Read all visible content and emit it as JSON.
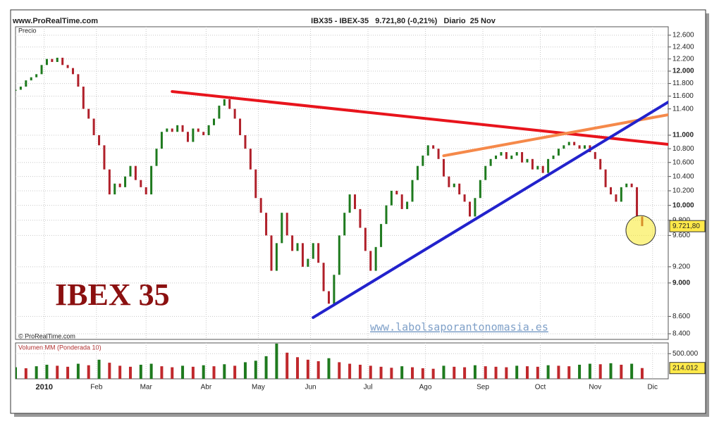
{
  "chart_data": [
    {
      "type": "line",
      "source": "www.ProRealTime.com",
      "title": "IBX35 - IBEX-35   9.721,80 (-0,21%)   Diario  25 Nov",
      "y_label": "Precio",
      "credit": "© ProRealTime.com",
      "annotation": "IBEX 35",
      "watermark": "www.labolsaporantonomasia.es",
      "log_scale": true,
      "grid": true,
      "colors": {
        "up": "#1e7a1e",
        "down": "#b0202a"
      },
      "xlim": [
        0,
        250
      ],
      "ylim": [
        8336,
        12745
      ],
      "yticks": [
        {
          "value": 12600,
          "label": "12.600"
        },
        {
          "value": 12400,
          "label": "12.400"
        },
        {
          "value": 12200,
          "label": "12.200"
        },
        {
          "value": 12000,
          "label": "12.000"
        },
        {
          "value": 11800,
          "label": "11.800"
        },
        {
          "value": 11600,
          "label": "11.600"
        },
        {
          "value": 11400,
          "label": "11.400"
        },
        {
          "value": 11000,
          "label": "11.000"
        },
        {
          "value": 10800,
          "label": "10.800"
        },
        {
          "value": 10600,
          "label": "10.600"
        },
        {
          "value": 10400,
          "label": "10.400"
        },
        {
          "value": 10200,
          "label": "10.200"
        },
        {
          "value": 10000,
          "label": "10.000"
        },
        {
          "value": 9800,
          "label": "9.800"
        },
        {
          "value": 9600,
          "label": "9.600"
        },
        {
          "value": 9200,
          "label": "9.200"
        },
        {
          "value": 9000,
          "label": "9.000"
        },
        {
          "value": 8600,
          "label": "8.600"
        },
        {
          "value": 8400,
          "label": "8.400"
        }
      ],
      "x": [
        0,
        2,
        4,
        6,
        8,
        10,
        12,
        14,
        16,
        18,
        20,
        22,
        24,
        26,
        28,
        30,
        32,
        34,
        36,
        38,
        40,
        42,
        44,
        46,
        48,
        50,
        52,
        54,
        56,
        58,
        60,
        62,
        64,
        66,
        68,
        70,
        72,
        74,
        76,
        78,
        80,
        82,
        84,
        86,
        88,
        90,
        92,
        94,
        96,
        98,
        100,
        102,
        104,
        106,
        108,
        110,
        112,
        114,
        116,
        118,
        120,
        122,
        124,
        126,
        128,
        130,
        132,
        134,
        136,
        138,
        140,
        142,
        144,
        146,
        148,
        150,
        152,
        154,
        156,
        158,
        160,
        162,
        164,
        166,
        168,
        170,
        172,
        174,
        176,
        178,
        180,
        182,
        184,
        186,
        188,
        190,
        192,
        194,
        196,
        198,
        200,
        202,
        204,
        206,
        208,
        210,
        212,
        214,
        216,
        218,
        220,
        222,
        224,
        226,
        228,
        230,
        232,
        234,
        236,
        238,
        240
      ],
      "values": [
        11700,
        11750,
        11850,
        11900,
        11950,
        12100,
        12200,
        12150,
        12220,
        12100,
        12050,
        11950,
        11750,
        11400,
        11250,
        11000,
        10850,
        10500,
        10150,
        10300,
        10250,
        10400,
        10550,
        10350,
        10250,
        10150,
        10550,
        10800,
        11050,
        11100,
        11050,
        11150,
        11050,
        10900,
        11100,
        11050,
        11000,
        11150,
        11250,
        11450,
        11550,
        11400,
        11250,
        11000,
        10800,
        10500,
        10100,
        9900,
        9600,
        9150,
        9500,
        9900,
        9600,
        9400,
        9500,
        9200,
        9300,
        9500,
        9250,
        8900,
        8750,
        9100,
        9600,
        9900,
        10150,
        9950,
        9700,
        9400,
        9150,
        9450,
        9750,
        10000,
        10200,
        10150,
        9950,
        10050,
        10350,
        10550,
        10700,
        10850,
        10800,
        10650,
        10400,
        10250,
        10300,
        10150,
        10050,
        9850,
        10100,
        10350,
        10550,
        10650,
        10700,
        10750,
        10650,
        10700,
        10750,
        10600,
        10650,
        10500,
        10550,
        10450,
        10650,
        10700,
        10800,
        10850,
        10900,
        10850,
        10800,
        10850,
        10750,
        10650,
        10500,
        10250,
        10150,
        10050,
        10250,
        10300,
        10250,
        9850,
        9721.8
      ],
      "last_value": {
        "value": 9721.8,
        "label": "9.721,80"
      },
      "trend_lines": [
        {
          "color": "#e8141c",
          "x": [
            60,
            250
          ],
          "y": [
            11672,
            10864
          ]
        },
        {
          "color": "#f5894a",
          "x": [
            164,
            250
          ],
          "y": [
            10697,
            11310
          ]
        },
        {
          "color": "#2222cc",
          "x": [
            114,
            250
          ],
          "y": [
            8587,
            11506
          ]
        }
      ]
    },
    {
      "type": "bar",
      "title": "Volumen MM (Ponderada 10)",
      "colors": {
        "up": "#1e7a1e",
        "down": "#c0282c"
      },
      "grid": true,
      "xlim": [
        0,
        250
      ],
      "ylim": [
        0,
        714000
      ],
      "yticks": [
        {
          "value": 500000,
          "label": "500.000"
        }
      ],
      "xticks": [
        {
          "value": 11,
          "label": "2010"
        },
        {
          "value": 31,
          "label": "Feb"
        },
        {
          "value": 50,
          "label": "Mar"
        },
        {
          "value": 73,
          "label": "Abr"
        },
        {
          "value": 93,
          "label": "May"
        },
        {
          "value": 113,
          "label": "Jun"
        },
        {
          "value": 135,
          "label": "Jul"
        },
        {
          "value": 157,
          "label": "Ago"
        },
        {
          "value": 179,
          "label": "Sep"
        },
        {
          "value": 201,
          "label": "Oct"
        },
        {
          "value": 222,
          "label": "Nov"
        },
        {
          "value": 244,
          "label": "Dic"
        }
      ],
      "x": [
        0,
        4,
        8,
        12,
        16,
        20,
        24,
        28,
        32,
        36,
        40,
        44,
        48,
        52,
        56,
        60,
        64,
        68,
        72,
        76,
        80,
        84,
        88,
        92,
        96,
        100,
        104,
        108,
        112,
        116,
        120,
        124,
        128,
        132,
        136,
        140,
        144,
        148,
        152,
        156,
        160,
        164,
        168,
        172,
        176,
        180,
        184,
        188,
        192,
        196,
        200,
        204,
        208,
        212,
        216,
        220,
        224,
        228,
        232,
        236,
        240
      ],
      "values": [
        230000,
        210000,
        250000,
        280000,
        260000,
        240000,
        300000,
        270000,
        380000,
        320000,
        260000,
        240000,
        280000,
        300000,
        250000,
        230000,
        260000,
        240000,
        270000,
        250000,
        290000,
        260000,
        330000,
        360000,
        450000,
        700000,
        520000,
        430000,
        380000,
        350000,
        410000,
        330000,
        300000,
        280000,
        260000,
        240000,
        220000,
        250000,
        230000,
        210000,
        200000,
        260000,
        240000,
        230000,
        270000,
        250000,
        240000,
        230000,
        260000,
        250000,
        240000,
        270000,
        260000,
        250000,
        280000,
        300000,
        290000,
        310000,
        280000,
        300000,
        214012
      ],
      "last_value": {
        "value": 214012,
        "label": "214.012"
      }
    }
  ]
}
